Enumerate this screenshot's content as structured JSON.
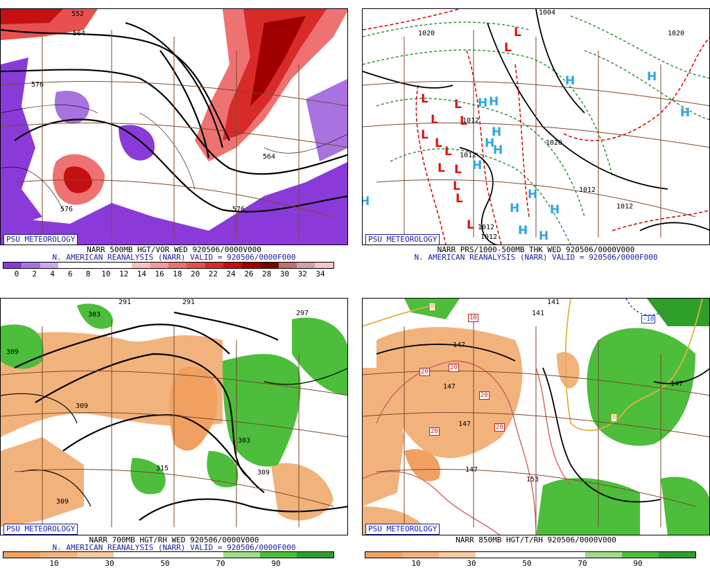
{
  "panels": [
    {
      "id": "p1",
      "badge": "PSU METEOROLOGY",
      "caption1": "NARR 500MB HGT/VOR WED 920506/0000V000",
      "caption2": "N. AMERICAN REANALYSIS (NARR) VALID = 920506/0000F000",
      "ticks": [
        "0",
        "2",
        "4",
        "6",
        "8",
        "10",
        "12",
        "14",
        "16",
        "18",
        "20",
        "22",
        "24",
        "26",
        "28",
        "30",
        "32",
        "34"
      ],
      "labels": [
        "552",
        "564",
        "576",
        "564",
        "576",
        "576"
      ],
      "colors": [
        "#8a3ad8",
        "#a873e0",
        "#c9a8ef",
        "#ffffff",
        "#ffffff",
        "#ffffff",
        "#ffffff",
        "#f7c0c0",
        "#f49a9a",
        "#ee7272",
        "#e85050",
        "#d92a2a",
        "#c41010",
        "#a00000",
        "#7a0000",
        "#c07070",
        "#d4a0a0",
        "#f0c8c8"
      ]
    },
    {
      "id": "p2",
      "badge": "PSU METEOROLOGY",
      "caption1": "NARR PRS/1000-500MB THK WED 920506/0000V000",
      "caption2": "N. AMERICAN REANALYSIS (NARR) VALID = 920506/0000F000",
      "labels": [
        "1004",
        "1020",
        "1020",
        "1012",
        "1012",
        "1012",
        "1020",
        "1012",
        "1012",
        "1012"
      ]
    },
    {
      "id": "p3",
      "badge": "PSU METEOROLOGY",
      "caption1": "NARR 700MB HGT/RH WED 920506/0000V000",
      "caption2": "N. AMERICAN REANALYSIS (NARR) VALID = 920506/0000F000",
      "ticks": [
        "10",
        "30",
        "50",
        "70",
        "90"
      ],
      "labels": [
        "291",
        "291",
        "297",
        "303",
        "309",
        "309",
        "303",
        "315",
        "309",
        "309"
      ],
      "colors": [
        "#f0a060",
        "#f2b27c",
        "#f6c9a0",
        "#ffffff",
        "#ffffff",
        "#ffffff",
        "#9fdc8c",
        "#4cbe3c",
        "#2e9f2a"
      ]
    },
    {
      "id": "p4",
      "badge": "PSU METEOROLOGY",
      "caption1": "NARR 850MB HGT/T/RH 920506/0000V000",
      "ticks": [
        "10",
        "30",
        "50",
        "70",
        "90"
      ],
      "labels": [
        "141",
        "141",
        "147",
        "147",
        "147",
        "147",
        "147",
        "153"
      ],
      "boxes": [
        "10",
        "0",
        "-10",
        "20",
        "20",
        "20",
        "20",
        "20",
        "0"
      ],
      "colors": [
        "#f0a060",
        "#f2b27c",
        "#f6c9a0",
        "#ffffff",
        "#ffffff",
        "#ffffff",
        "#9fdc8c",
        "#4cbe3c",
        "#2e9f2a"
      ]
    }
  ]
}
